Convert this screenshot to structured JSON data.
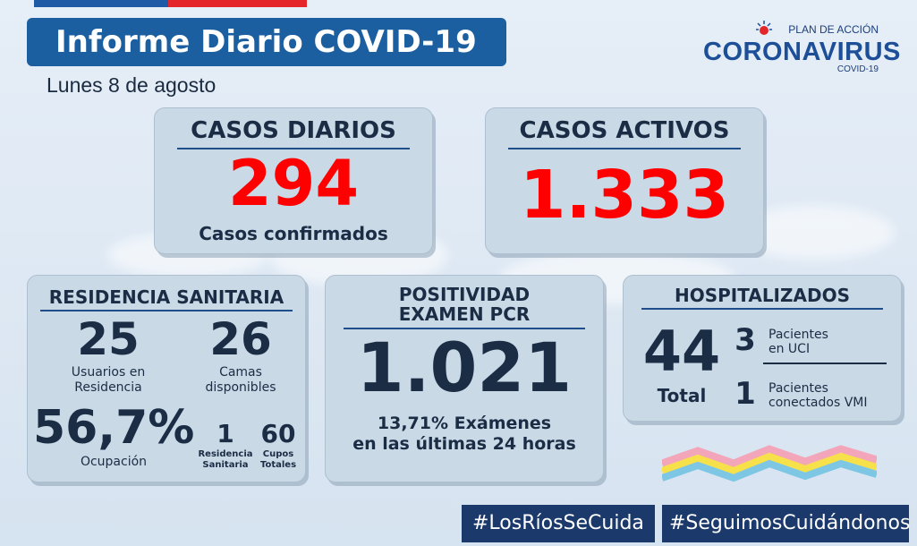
{
  "header": {
    "title": "Informe Diario COVID-19",
    "date": "Lunes 8 de agosto"
  },
  "logo": {
    "top_text": "PLAN DE ACCIÓN",
    "main_text": "CORONAVIRUS",
    "bottom_text": "COVID-19"
  },
  "casos_diarios": {
    "heading": "CASOS DIARIOS",
    "value": "294",
    "caption": "Casos confirmados"
  },
  "casos_activos": {
    "heading": "CASOS ACTIVOS",
    "value": "1.333"
  },
  "residencia": {
    "heading": "RESIDENCIA SANITARIA",
    "usuarios_value": "25",
    "usuarios_label_1": "Usuarios en",
    "usuarios_label_2": "Residencia",
    "camas_value": "26",
    "camas_label_1": "Camas",
    "camas_label_2": "disponibles",
    "ocupacion_value": "56,7%",
    "ocupacion_label": "Ocupación",
    "residencias_value": "1",
    "residencias_label_1": "Residencia",
    "residencias_label_2": "Sanitaria",
    "cupos_value": "60",
    "cupos_label_1": "Cupos",
    "cupos_label_2": "Totales"
  },
  "positividad": {
    "heading_1": "POSITIVIDAD",
    "heading_2": "EXAMEN PCR",
    "value": "1.021",
    "caption_1": "13,71% Exámenes",
    "caption_2": "en las últimas 24 horas"
  },
  "hospitalizados": {
    "heading": "HOSPITALIZADOS",
    "total_value": "44",
    "total_label": "Total",
    "uci_value": "3",
    "uci_label_1": "Pacientes",
    "uci_label_2": "en UCI",
    "vmi_value": "1",
    "vmi_label_1": "Pacientes",
    "vmi_label_2": "conectados VMI"
  },
  "hashtags": {
    "first": "#LosRíosSeCuida",
    "second": "#SeguimosCuidándonos"
  },
  "colors": {
    "brand_blue": "#1c5fa0",
    "brand_red": "#e4262b",
    "alert_red": "#ff0000",
    "navy_text": "#1b2c45",
    "card_bg": "#c9d9e6"
  }
}
